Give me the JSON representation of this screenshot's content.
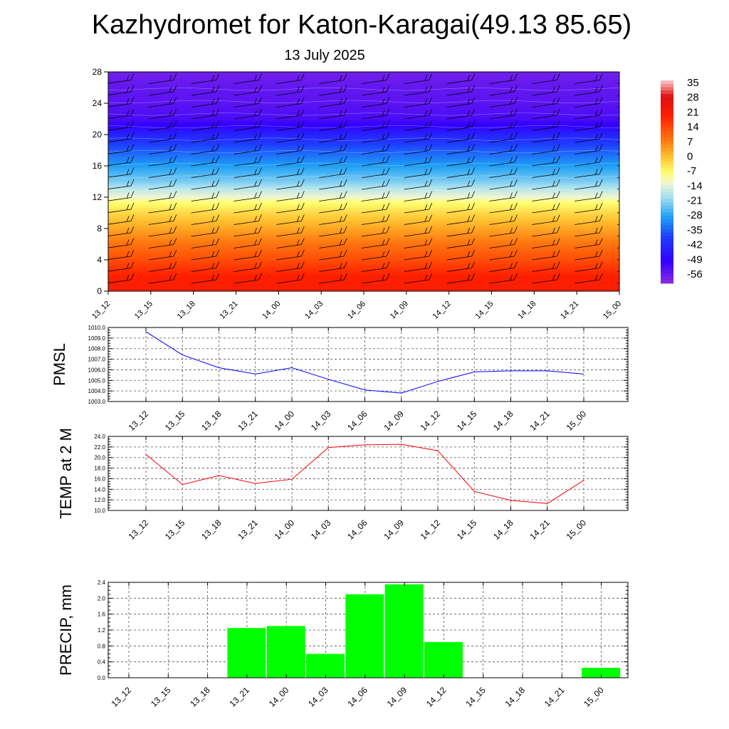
{
  "title": "Kazhydromet for Katon-Karagai(49.13 85.65)",
  "subtitle": "13 July 2025",
  "chart_data": [
    {
      "type": "heatmap",
      "title": "",
      "x": [
        "13_12",
        "13_15",
        "13_18",
        "13_21",
        "14_00",
        "14_03",
        "14_06",
        "14_09",
        "14_12",
        "14_15",
        "14_18",
        "14_21",
        "15_00"
      ],
      "ylim": [
        0,
        28
      ],
      "yticks": [
        0,
        4,
        8,
        12,
        16,
        20,
        24,
        28
      ],
      "colorbar": {
        "labels": [
          "35",
          "28",
          "21",
          "14",
          "7",
          "0",
          "-7",
          "-14",
          "-21",
          "-28",
          "-35",
          "-42",
          "-49",
          "-56"
        ],
        "range": [
          -63,
          38
        ],
        "stops": [
          {
            "v": -63,
            "c": "#8a2be2"
          },
          {
            "v": -52,
            "c": "#3300ff"
          },
          {
            "v": -40,
            "c": "#1f3dff"
          },
          {
            "v": -30,
            "c": "#1fa0f5"
          },
          {
            "v": -20,
            "c": "#a6e0f0"
          },
          {
            "v": -13,
            "c": "#f2f6d0"
          },
          {
            "v": -8,
            "c": "#ffff70"
          },
          {
            "v": 0,
            "c": "#ffc030"
          },
          {
            "v": 8,
            "c": "#ff7a10"
          },
          {
            "v": 20,
            "c": "#ff2000"
          },
          {
            "v": 30,
            "c": "#dd1010"
          },
          {
            "v": 34,
            "c": "#f07070"
          },
          {
            "v": 38,
            "c": "#f2cccc"
          }
        ]
      },
      "temperature_profile": {
        "levels": [
          0,
          2,
          4,
          6,
          8,
          10,
          11.5,
          12,
          13,
          14,
          16,
          18,
          20,
          21,
          22,
          24,
          26,
          28
        ],
        "values": [
          22,
          20,
          14,
          9,
          3,
          -3,
          -9,
          -13,
          -18,
          -23,
          -30,
          -37,
          -45,
          -51,
          -55,
          -57,
          -58,
          -60
        ]
      }
    },
    {
      "type": "line",
      "ylabel": "PMSL",
      "x": [
        "13_12",
        "13_15",
        "13_18",
        "13_21",
        "14_00",
        "14_03",
        "14_06",
        "14_09",
        "14_12",
        "14_15",
        "14_18",
        "14_21",
        "15_00"
      ],
      "series": [
        {
          "color": "#0000ff",
          "values": [
            1009.6,
            1007.4,
            1006.2,
            1005.6,
            1006.2,
            1005.1,
            1004.1,
            1003.8,
            1004.9,
            1005.8,
            1005.9,
            1005.9,
            1005.6
          ]
        }
      ],
      "ylim": [
        1003.0,
        1010.0
      ],
      "yticks": [
        "1003.0",
        "1004.0",
        "1005.0",
        "1006.0",
        "1007.0",
        "1008.0",
        "1009.0",
        "1010.0"
      ],
      "grid": true
    },
    {
      "type": "line",
      "ylabel": "TEMP at 2 M",
      "x": [
        "13_12",
        "13_15",
        "13_18",
        "13_21",
        "14_00",
        "14_03",
        "14_06",
        "14_09",
        "14_12",
        "14_15",
        "14_18",
        "14_21",
        "15_00"
      ],
      "series": [
        {
          "color": "#ff0000",
          "values": [
            20.6,
            14.9,
            16.6,
            15.1,
            15.9,
            21.9,
            22.4,
            22.5,
            21.3,
            13.6,
            11.9,
            11.3,
            15.7
          ]
        }
      ],
      "ylim": [
        10.0,
        24.0
      ],
      "yticks": [
        "10.0",
        "12.0",
        "14.0",
        "16.0",
        "18.0",
        "20.0",
        "22.0",
        "24.0"
      ],
      "grid": true
    },
    {
      "type": "bar",
      "ylabel": "PRECIP, mm",
      "categories": [
        "13_12",
        "13_15",
        "13_18",
        "13_21",
        "14_00",
        "14_03",
        "14_06",
        "14_09",
        "14_12",
        "14_15",
        "14_18",
        "14_21",
        "15_00"
      ],
      "series": [
        {
          "color": "#00ff00",
          "values": [
            0,
            0,
            0,
            1.25,
            1.3,
            0.6,
            2.1,
            2.35,
            0.9,
            0,
            0,
            0,
            0.25
          ]
        }
      ],
      "ylim": [
        0,
        2.4
      ],
      "yticks": [
        "0.0",
        "0.4",
        "0.8",
        "1.2",
        "1.6",
        "2.0",
        "2.4"
      ],
      "grid": true
    }
  ]
}
